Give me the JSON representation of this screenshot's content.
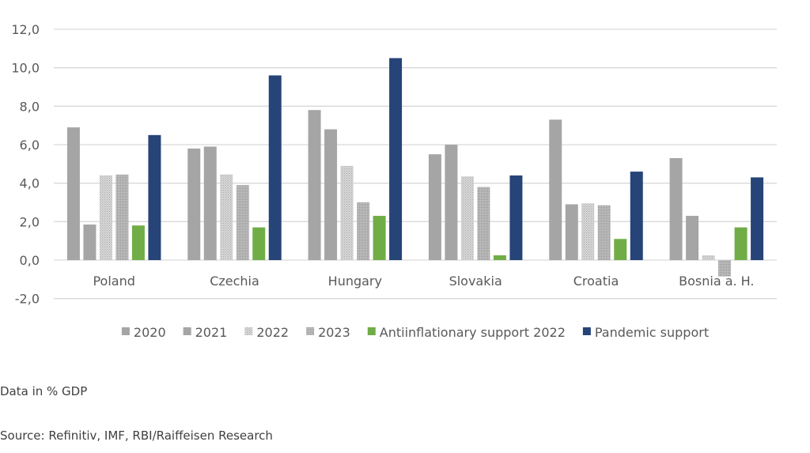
{
  "chart_data": {
    "type": "bar",
    "title": "",
    "xlabel": "",
    "ylabel": "",
    "ylim": [
      -2,
      12
    ],
    "yticks": [
      "-2,0",
      "0,0",
      "2,0",
      "4,0",
      "6,0",
      "8,0",
      "10,0",
      "12,0"
    ],
    "ytick_values": [
      -2,
      0,
      2,
      4,
      6,
      8,
      10,
      12
    ],
    "grid": true,
    "legend_position": "bottom",
    "categories": [
      "Poland",
      "Czechia",
      "Hungary",
      "Slovakia",
      "Croatia",
      "Bosnia a. H."
    ],
    "series": [
      {
        "name": "2020",
        "color": "#a5a5a5",
        "pattern": "solid",
        "values": [
          6.9,
          5.8,
          7.8,
          5.5,
          7.3,
          5.3
        ]
      },
      {
        "name": "2021",
        "color": "#a5a5a5",
        "pattern": "solid",
        "values": [
          1.85,
          5.9,
          6.8,
          6.0,
          2.9,
          2.3
        ]
      },
      {
        "name": "2022",
        "color": "#c8c8c8",
        "pattern": "dots-light",
        "values": [
          4.4,
          4.45,
          4.9,
          4.35,
          2.95,
          0.25
        ]
      },
      {
        "name": "2023",
        "color": "#b0b0b0",
        "pattern": "dots-dark",
        "values": [
          4.45,
          3.9,
          3.0,
          3.8,
          2.85,
          -0.85
        ]
      },
      {
        "name": "Antiinflationary support 2022",
        "color": "#70ad47",
        "pattern": "solid",
        "values": [
          1.8,
          1.7,
          2.3,
          0.25,
          1.1,
          1.7
        ]
      },
      {
        "name": "Pandemic support",
        "color": "#264478",
        "pattern": "solid",
        "values": [
          6.5,
          9.6,
          10.5,
          4.4,
          4.6,
          4.3
        ]
      }
    ]
  },
  "notes": {
    "units": "Data in % GDP",
    "source": "Source: Refinitiv, IMF, RBI/Raiffeisen Research"
  }
}
